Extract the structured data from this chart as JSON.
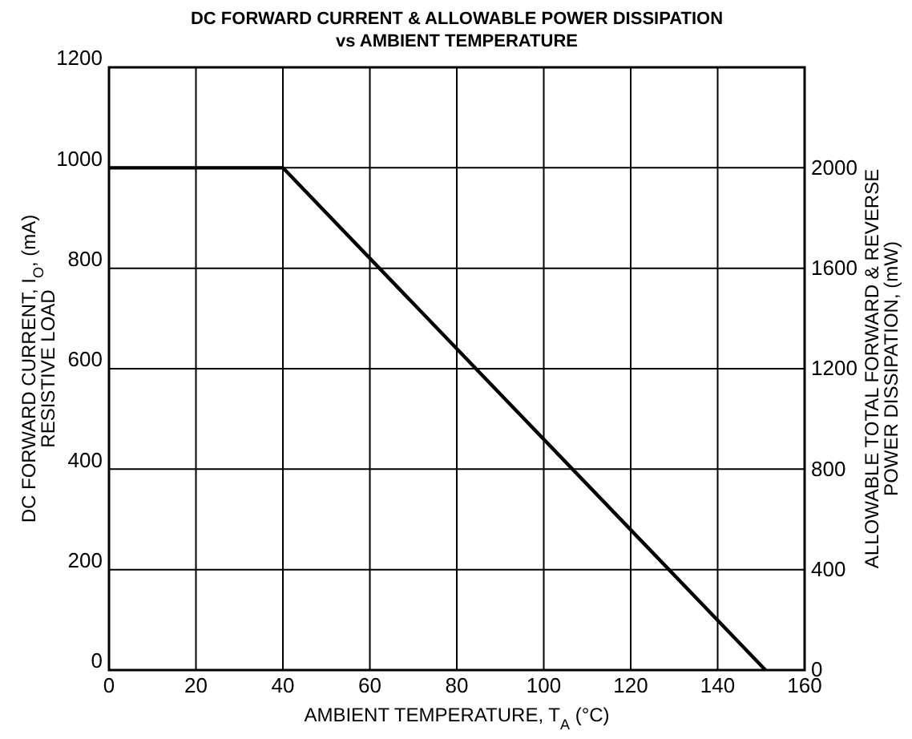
{
  "chart_data": {
    "type": "line",
    "title": "DC FORWARD CURRENT & ALLOWABLE POWER DISSIPATION",
    "subtitle": "vs AMBIENT TEMPERATURE",
    "xlabel": "AMBIENT TEMPERATURE, T$_{A}$ (°C)",
    "ylabel": "DC FORWARD CURRENT, I$_{O}$, (mA)\nRESISTIVE LOAD",
    "y2label": "ALLOWABLE TOTAL FORWARD & REVERSE\nPOWER DISSIPATION, (mW)",
    "x": [
      0,
      40,
      151
    ],
    "series": [
      {
        "color": "#000000",
        "values": [
          1000,
          1000,
          0
        ]
      }
    ],
    "xlim": [
      0,
      160
    ],
    "xticks": [
      0,
      20,
      40,
      60,
      80,
      100,
      120,
      140,
      160
    ],
    "ylim": [
      0,
      1200
    ],
    "yticks": [
      0,
      200,
      400,
      600,
      800,
      1000,
      1200
    ],
    "y2lim": [
      0,
      2400
    ],
    "y2ticks": [
      0,
      400,
      800,
      1200,
      1600,
      2000
    ],
    "grid": true,
    "marker": "none",
    "line_style": "solid"
  }
}
